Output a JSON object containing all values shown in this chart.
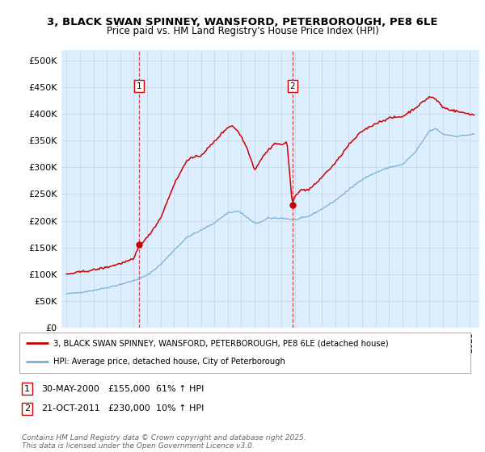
{
  "title": "3, BLACK SWAN SPINNEY, WANSFORD, PETERBOROUGH, PE8 6LE",
  "subtitle": "Price paid vs. HM Land Registry's House Price Index (HPI)",
  "ylabel_ticks": [
    "£0",
    "£50K",
    "£100K",
    "£150K",
    "£200K",
    "£250K",
    "£300K",
    "£350K",
    "£400K",
    "£450K",
    "£500K"
  ],
  "ytick_values": [
    0,
    50000,
    100000,
    150000,
    200000,
    250000,
    300000,
    350000,
    400000,
    450000,
    500000
  ],
  "ylim": [
    0,
    520000
  ],
  "sale1_date": 2000.41,
  "sale1_price": 155000,
  "sale2_date": 2011.8,
  "sale2_price": 230000,
  "legend_line1": "3, BLACK SWAN SPINNEY, WANSFORD, PETERBOROUGH, PE8 6LE (detached house)",
  "legend_line2": "HPI: Average price, detached house, City of Peterborough",
  "footnote": "Contains HM Land Registry data © Crown copyright and database right 2025.\nThis data is licensed under the Open Government Licence v3.0.",
  "red_color": "#cc0000",
  "blue_color": "#7ab0d4",
  "bg_color": "#ddeeff",
  "grid_color": "#c8d8e8",
  "label_fontsize": 8,
  "tick_fontsize": 7.5
}
